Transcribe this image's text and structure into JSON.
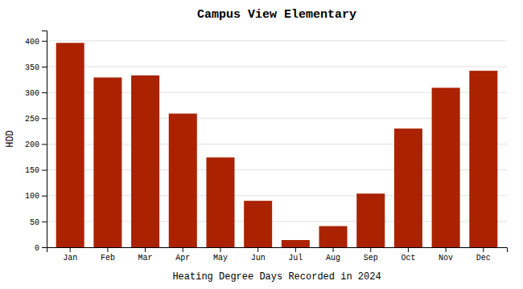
{
  "chart_data": {
    "type": "bar",
    "title": "Campus View Elementary",
    "xlabel": "Heating Degree Days Recorded in 2024",
    "ylabel": "HDD",
    "categories": [
      "Jan",
      "Feb",
      "Mar",
      "Apr",
      "May",
      "Jun",
      "Jul",
      "Aug",
      "Sep",
      "Oct",
      "Nov",
      "Dec"
    ],
    "values": [
      396,
      329,
      333,
      259,
      174,
      90,
      14,
      41,
      104,
      230,
      309,
      342
    ],
    "color": "#aa2200",
    "ylim": [
      0,
      420
    ],
    "yticks": [
      0,
      50,
      100,
      150,
      200,
      250,
      300,
      350,
      400
    ],
    "grid": true
  }
}
